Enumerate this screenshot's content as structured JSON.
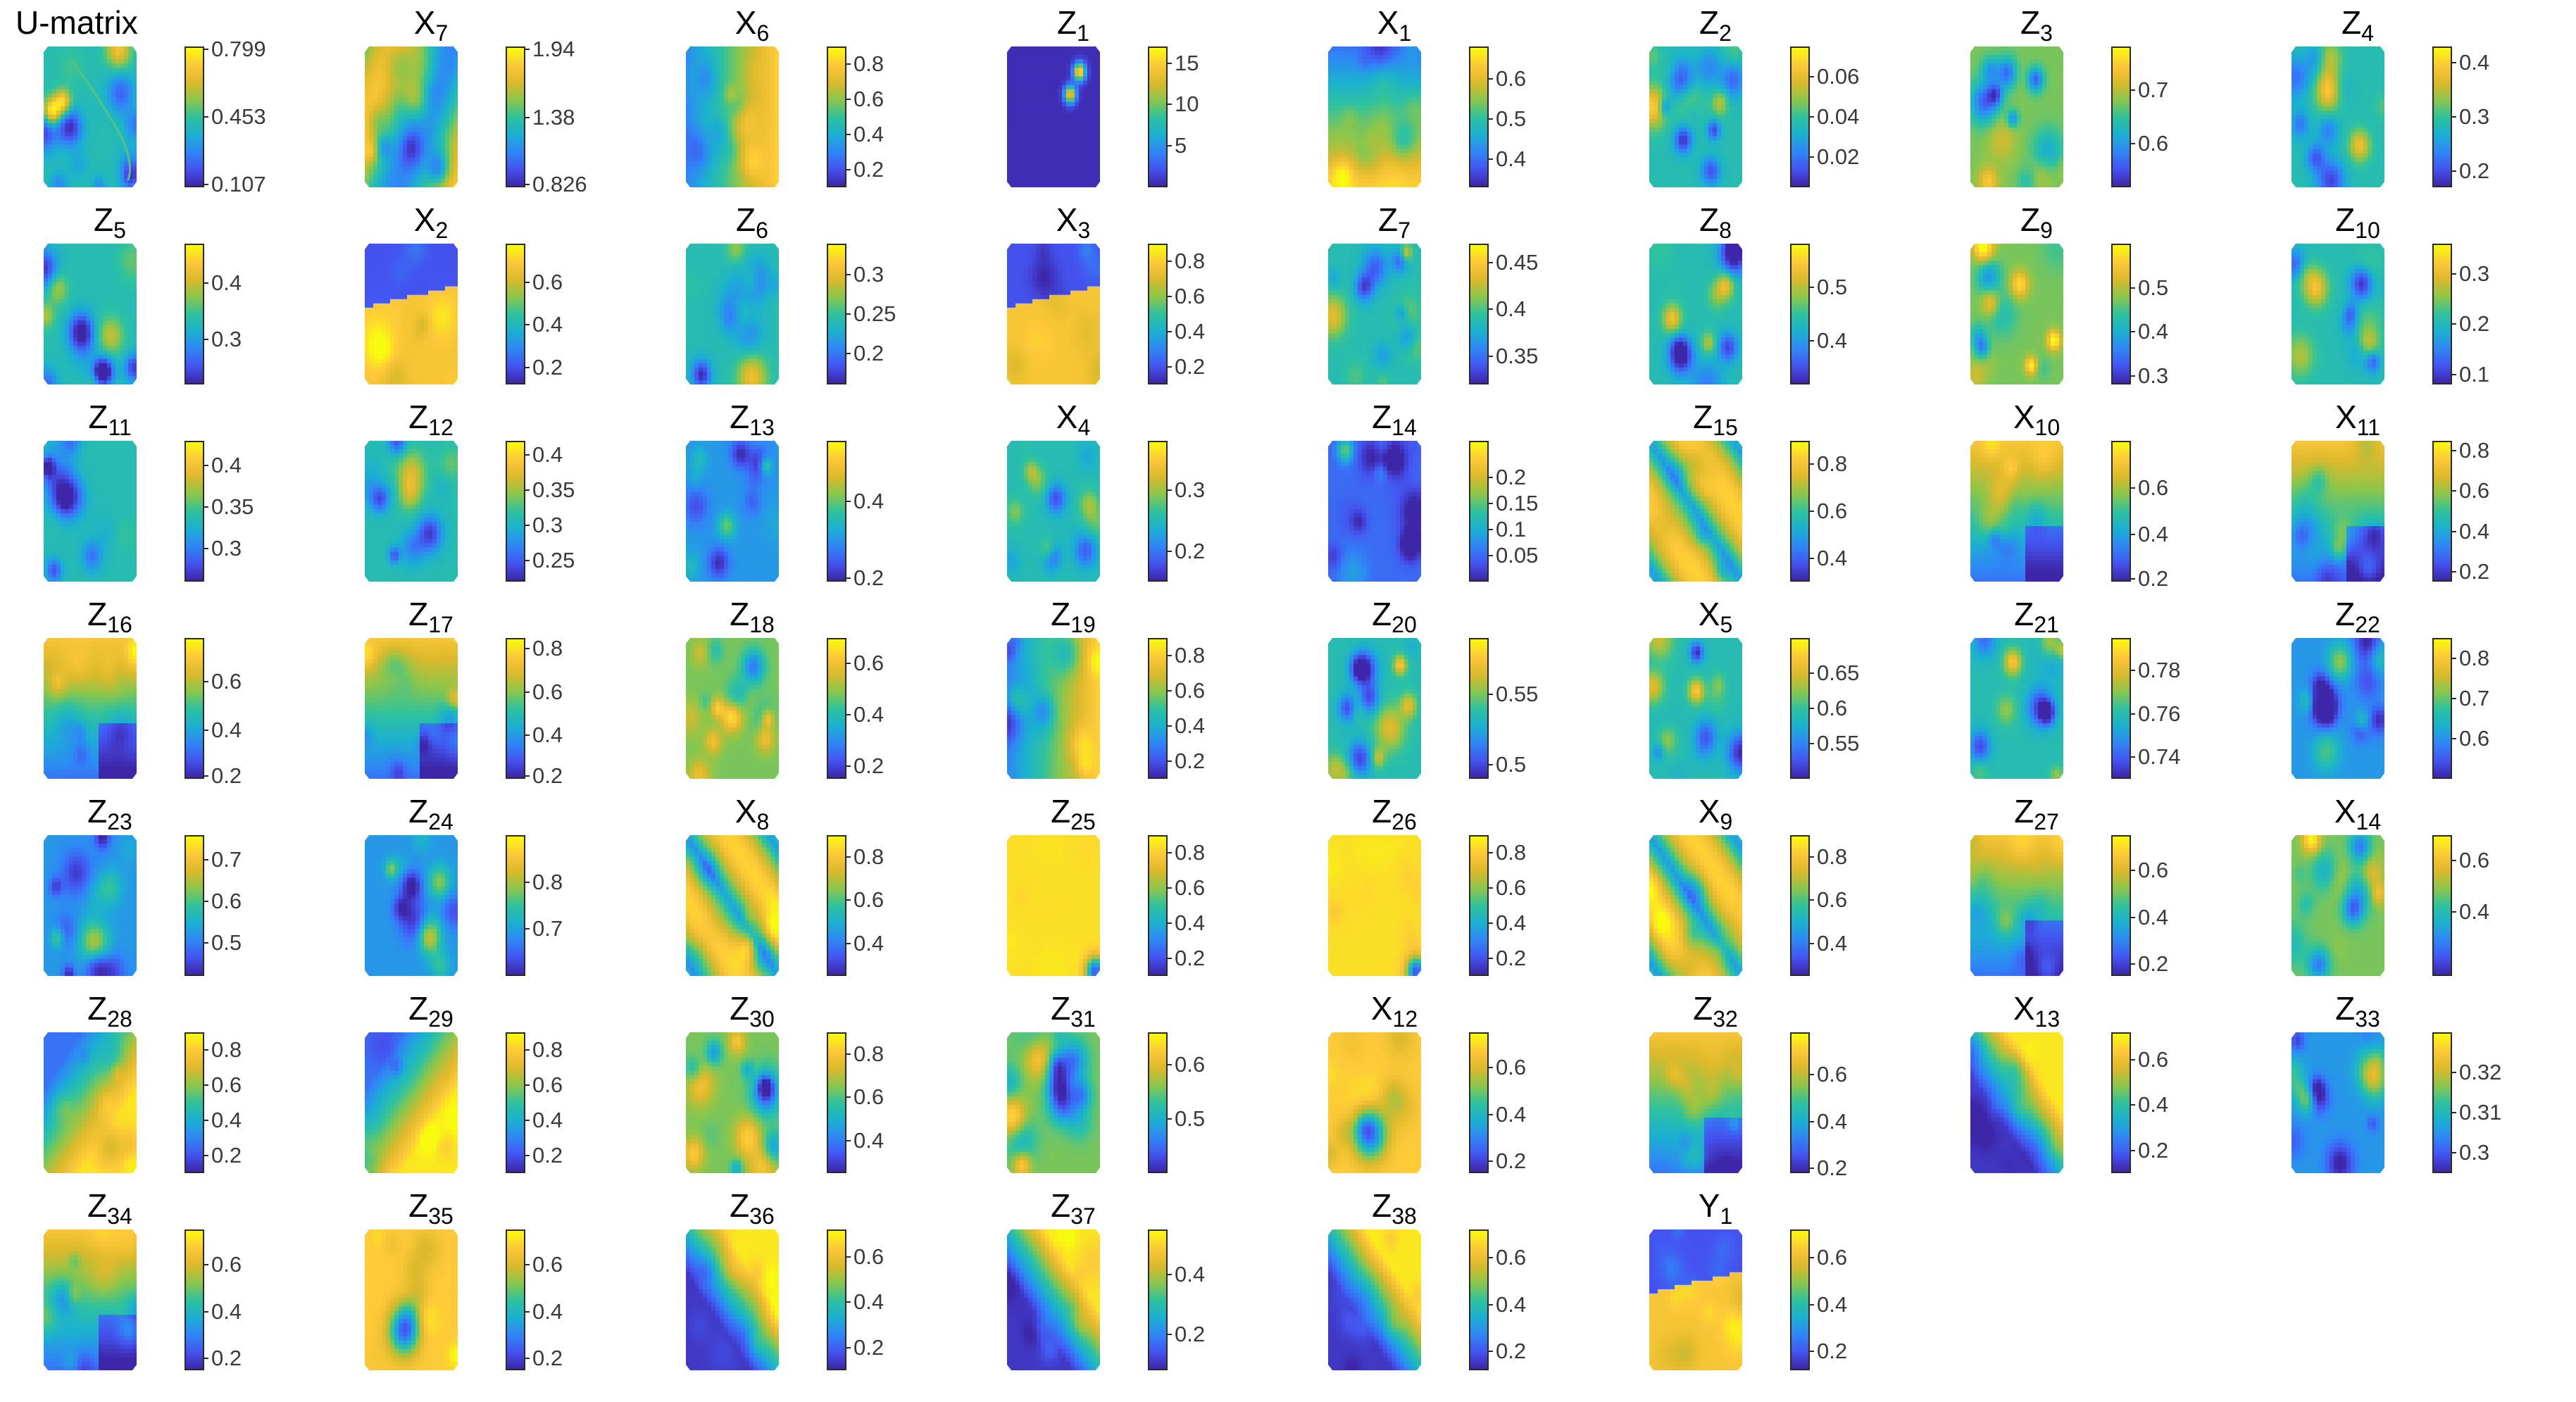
{
  "chart_data": {
    "type": "heatmap",
    "description_kind": "SOM component planes",
    "colormap": [
      "#3e26a8",
      "#4454f0",
      "#2f87f6",
      "#1bb0d0",
      "#2fc29e",
      "#8bc64b",
      "#dcb92c",
      "#fdc939",
      "#f9fb0e"
    ],
    "grid": "7 rows x 8 columns",
    "panels": [
      {
        "id": "U-matrix",
        "label": "U-matrix",
        "base": "U-matrix",
        "sub": "",
        "ticks": [
          "0.799",
          "0.453",
          "0.107"
        ],
        "tick_values": [
          0.799,
          0.453,
          0.107
        ],
        "range": [
          0.107,
          0.799
        ],
        "pattern": "speckle"
      },
      {
        "id": "X7",
        "label": "X7",
        "base": "X",
        "sub": "7",
        "ticks": [
          "1.94",
          "1.38",
          "0.826"
        ],
        "tick_values": [
          1.94,
          1.38,
          0.826
        ],
        "range": [
          0.826,
          1.94
        ],
        "pattern": "blob"
      },
      {
        "id": "X6",
        "label": "X6",
        "base": "X",
        "sub": "6",
        "ticks": [
          "0.8",
          "0.6",
          "0.4",
          "0.2"
        ],
        "tick_values": [
          0.8,
          0.6,
          0.4,
          0.2
        ],
        "range": [
          0.1,
          0.9
        ],
        "pattern": "gradient-right"
      },
      {
        "id": "Z1",
        "label": "Z1",
        "base": "Z",
        "sub": "1",
        "ticks": [
          "15",
          "10",
          "5"
        ],
        "tick_values": [
          15,
          10,
          5
        ],
        "range": [
          0,
          17
        ],
        "pattern": "dark-spots"
      },
      {
        "id": "X1",
        "label": "X1",
        "base": "X",
        "sub": "1",
        "ticks": [
          "0.6",
          "0.5",
          "0.4"
        ],
        "tick_values": [
          0.6,
          0.5,
          0.4
        ],
        "range": [
          0.33,
          0.68
        ],
        "pattern": "gradient-bottom"
      },
      {
        "id": "Z2",
        "label": "Z2",
        "base": "Z",
        "sub": "2",
        "ticks": [
          "0.06",
          "0.04",
          "0.02"
        ],
        "tick_values": [
          0.06,
          0.04,
          0.02
        ],
        "range": [
          0.005,
          0.075
        ],
        "pattern": "speckle"
      },
      {
        "id": "Z3",
        "label": "Z3",
        "base": "Z",
        "sub": "3",
        "ticks": [
          "0.7",
          "0.6"
        ],
        "tick_values": [
          0.7,
          0.6
        ],
        "range": [
          0.52,
          0.78
        ],
        "pattern": "speckle-warm"
      },
      {
        "id": "Z4",
        "label": "Z4",
        "base": "Z",
        "sub": "4",
        "ticks": [
          "0.4",
          "0.3",
          "0.2"
        ],
        "tick_values": [
          0.4,
          0.3,
          0.2
        ],
        "range": [
          0.17,
          0.43
        ],
        "pattern": "speckle"
      },
      {
        "id": "Z5",
        "label": "Z5",
        "base": "Z",
        "sub": "5",
        "ticks": [
          "0.4",
          "0.3"
        ],
        "tick_values": [
          0.4,
          0.3
        ],
        "range": [
          0.22,
          0.47
        ],
        "pattern": "speckle"
      },
      {
        "id": "X2",
        "label": "X2",
        "base": "X",
        "sub": "2",
        "ticks": [
          "0.6",
          "0.4",
          "0.2"
        ],
        "tick_values": [
          0.6,
          0.4,
          0.2
        ],
        "range": [
          0.12,
          0.78
        ],
        "pattern": "split-bottom"
      },
      {
        "id": "Z6",
        "label": "Z6",
        "base": "Z",
        "sub": "6",
        "ticks": [
          "0.3",
          "0.25",
          "0.2"
        ],
        "tick_values": [
          0.3,
          0.25,
          0.2
        ],
        "range": [
          0.16,
          0.34
        ],
        "pattern": "speckle"
      },
      {
        "id": "X3",
        "label": "X3",
        "base": "X",
        "sub": "3",
        "ticks": [
          "0.8",
          "0.6",
          "0.4",
          "0.2"
        ],
        "tick_values": [
          0.8,
          0.6,
          0.4,
          0.2
        ],
        "range": [
          0.1,
          0.9
        ],
        "pattern": "split-bottom"
      },
      {
        "id": "Z7",
        "label": "Z7",
        "base": "Z",
        "sub": "7",
        "ticks": [
          "0.45",
          "0.4",
          "0.35"
        ],
        "tick_values": [
          0.45,
          0.4,
          0.35
        ],
        "range": [
          0.32,
          0.47
        ],
        "pattern": "speckle"
      },
      {
        "id": "Z8",
        "label": "Z8",
        "base": "Z",
        "sub": "8",
        "ticks": [
          "0.5",
          "0.4"
        ],
        "tick_values": [
          0.5,
          0.4
        ],
        "range": [
          0.32,
          0.58
        ],
        "pattern": "speckle"
      },
      {
        "id": "Z9",
        "label": "Z9",
        "base": "Z",
        "sub": "9",
        "ticks": [
          "0.5",
          "0.4",
          "0.3"
        ],
        "tick_values": [
          0.5,
          0.4,
          0.3
        ],
        "range": [
          0.28,
          0.6
        ],
        "pattern": "speckle-warm"
      },
      {
        "id": "Z10",
        "label": "Z10",
        "base": "Z",
        "sub": "10",
        "ticks": [
          "0.3",
          "0.2",
          "0.1"
        ],
        "tick_values": [
          0.3,
          0.2,
          0.1
        ],
        "range": [
          0.08,
          0.36
        ],
        "pattern": "speckle"
      },
      {
        "id": "Z11",
        "label": "Z11",
        "base": "Z",
        "sub": "11",
        "ticks": [
          "0.4",
          "0.35",
          "0.3"
        ],
        "tick_values": [
          0.4,
          0.35,
          0.3
        ],
        "range": [
          0.26,
          0.43
        ],
        "pattern": "speckle"
      },
      {
        "id": "Z12",
        "label": "Z12",
        "base": "Z",
        "sub": "12",
        "ticks": [
          "0.4",
          "0.35",
          "0.3",
          "0.25"
        ],
        "tick_values": [
          0.4,
          0.35,
          0.3,
          0.25
        ],
        "range": [
          0.22,
          0.42
        ],
        "pattern": "speckle"
      },
      {
        "id": "Z13",
        "label": "Z13",
        "base": "Z",
        "sub": "13",
        "ticks": [
          "0.4",
          "0.2"
        ],
        "tick_values": [
          0.4,
          0.2
        ],
        "range": [
          0.19,
          0.56
        ],
        "pattern": "speckle-cool"
      },
      {
        "id": "X4",
        "label": "X4",
        "base": "X",
        "sub": "4",
        "ticks": [
          "0.3",
          "0.2"
        ],
        "tick_values": [
          0.3,
          0.2
        ],
        "range": [
          0.15,
          0.38
        ],
        "pattern": "speckle"
      },
      {
        "id": "Z14",
        "label": "Z14",
        "base": "Z",
        "sub": "14",
        "ticks": [
          "0.2",
          "0.15",
          "0.1",
          "0.05"
        ],
        "tick_values": [
          0.2,
          0.15,
          0.1,
          0.05
        ],
        "range": [
          0.0,
          0.27
        ],
        "pattern": "dark-speckle"
      },
      {
        "id": "Z15",
        "label": "Z15",
        "base": "Z",
        "sub": "15",
        "ticks": [
          "0.8",
          "0.6",
          "0.4"
        ],
        "tick_values": [
          0.8,
          0.6,
          0.4
        ],
        "range": [
          0.3,
          0.9
        ],
        "pattern": "diagonal"
      },
      {
        "id": "X10",
        "label": "X10",
        "base": "X",
        "sub": "10",
        "ticks": [
          "0.6",
          "0.4",
          "0.2"
        ],
        "tick_values": [
          0.6,
          0.4,
          0.2
        ],
        "range": [
          0.2,
          0.8
        ],
        "pattern": "gradient-top"
      },
      {
        "id": "X11",
        "label": "X11",
        "base": "X",
        "sub": "11",
        "ticks": [
          "0.8",
          "0.6",
          "0.4",
          "0.2"
        ],
        "tick_values": [
          0.8,
          0.6,
          0.4,
          0.2
        ],
        "range": [
          0.15,
          0.85
        ],
        "pattern": "gradient-top"
      },
      {
        "id": "Z16",
        "label": "Z16",
        "base": "Z",
        "sub": "16",
        "ticks": [
          "0.6",
          "0.4",
          "0.2"
        ],
        "tick_values": [
          0.6,
          0.4,
          0.2
        ],
        "range": [
          0.2,
          0.78
        ],
        "pattern": "gradient-top"
      },
      {
        "id": "Z17",
        "label": "Z17",
        "base": "Z",
        "sub": "17",
        "ticks": [
          "0.8",
          "0.6",
          "0.4",
          "0.2"
        ],
        "tick_values": [
          0.8,
          0.6,
          0.4,
          0.2
        ],
        "range": [
          0.2,
          0.85
        ],
        "pattern": "gradient-top"
      },
      {
        "id": "Z18",
        "label": "Z18",
        "base": "Z",
        "sub": "18",
        "ticks": [
          "0.6",
          "0.4",
          "0.2"
        ],
        "tick_values": [
          0.6,
          0.4,
          0.2
        ],
        "range": [
          0.15,
          0.7
        ],
        "pattern": "speckle-warm"
      },
      {
        "id": "Z19",
        "label": "Z19",
        "base": "Z",
        "sub": "19",
        "ticks": [
          "0.8",
          "0.6",
          "0.4",
          "0.2"
        ],
        "tick_values": [
          0.8,
          0.6,
          0.4,
          0.2
        ],
        "range": [
          0.1,
          0.9
        ],
        "pattern": "gradient-right"
      },
      {
        "id": "Z20",
        "label": "Z20",
        "base": "Z",
        "sub": "20",
        "ticks": [
          "0.55",
          "0.5"
        ],
        "tick_values": [
          0.55,
          0.5
        ],
        "range": [
          0.49,
          0.59
        ],
        "pattern": "speckle"
      },
      {
        "id": "X5",
        "label": "X5",
        "base": "X",
        "sub": "5",
        "ticks": [
          "0.65",
          "0.6",
          "0.55"
        ],
        "tick_values": [
          0.65,
          0.6,
          0.55
        ],
        "range": [
          0.5,
          0.7
        ],
        "pattern": "speckle"
      },
      {
        "id": "Z21",
        "label": "Z21",
        "base": "Z",
        "sub": "21",
        "ticks": [
          "0.78",
          "0.76",
          "0.74"
        ],
        "tick_values": [
          0.78,
          0.76,
          0.74
        ],
        "range": [
          0.73,
          0.795
        ],
        "pattern": "speckle"
      },
      {
        "id": "Z22",
        "label": "Z22",
        "base": "Z",
        "sub": "22",
        "ticks": [
          "0.8",
          "0.7",
          "0.6"
        ],
        "tick_values": [
          0.8,
          0.7,
          0.6
        ],
        "range": [
          0.5,
          0.85
        ],
        "pattern": "speckle-cool"
      },
      {
        "id": "Z23",
        "label": "Z23",
        "base": "Z",
        "sub": "23",
        "ticks": [
          "0.7",
          "0.6",
          "0.5"
        ],
        "tick_values": [
          0.7,
          0.6,
          0.5
        ],
        "range": [
          0.42,
          0.76
        ],
        "pattern": "speckle-cool"
      },
      {
        "id": "Z24",
        "label": "Z24",
        "base": "Z",
        "sub": "24",
        "ticks": [
          "0.8",
          "0.7"
        ],
        "tick_values": [
          0.8,
          0.7
        ],
        "range": [
          0.6,
          0.9
        ],
        "pattern": "speckle-cool"
      },
      {
        "id": "X8",
        "label": "X8",
        "base": "X",
        "sub": "8",
        "ticks": [
          "0.8",
          "0.6",
          "0.4"
        ],
        "tick_values": [
          0.8,
          0.6,
          0.4
        ],
        "range": [
          0.25,
          0.9
        ],
        "pattern": "diagonal"
      },
      {
        "id": "Z25",
        "label": "Z25",
        "base": "Z",
        "sub": "25",
        "ticks": [
          "0.8",
          "0.6",
          "0.4",
          "0.2"
        ],
        "tick_values": [
          0.8,
          0.6,
          0.4,
          0.2
        ],
        "range": [
          0.1,
          0.9
        ],
        "pattern": "yellow-corner"
      },
      {
        "id": "Z26",
        "label": "Z26",
        "base": "Z",
        "sub": "26",
        "ticks": [
          "0.8",
          "0.6",
          "0.4",
          "0.2"
        ],
        "tick_values": [
          0.8,
          0.6,
          0.4,
          0.2
        ],
        "range": [
          0.1,
          0.9
        ],
        "pattern": "yellow-corner"
      },
      {
        "id": "X9",
        "label": "X9",
        "base": "X",
        "sub": "9",
        "ticks": [
          "0.8",
          "0.6",
          "0.4"
        ],
        "tick_values": [
          0.8,
          0.6,
          0.4
        ],
        "range": [
          0.25,
          0.9
        ],
        "pattern": "diagonal"
      },
      {
        "id": "Z27",
        "label": "Z27",
        "base": "Z",
        "sub": "27",
        "ticks": [
          "0.6",
          "0.4",
          "0.2"
        ],
        "tick_values": [
          0.6,
          0.4,
          0.2
        ],
        "range": [
          0.15,
          0.75
        ],
        "pattern": "gradient-top"
      },
      {
        "id": "X14",
        "label": "X14",
        "base": "X",
        "sub": "14",
        "ticks": [
          "0.6",
          "0.4"
        ],
        "tick_values": [
          0.6,
          0.4
        ],
        "range": [
          0.15,
          0.7
        ],
        "pattern": "speckle-warm"
      },
      {
        "id": "Z28",
        "label": "Z28",
        "base": "Z",
        "sub": "28",
        "ticks": [
          "0.8",
          "0.6",
          "0.4",
          "0.2"
        ],
        "tick_values": [
          0.8,
          0.6,
          0.4,
          0.2
        ],
        "range": [
          0.1,
          0.9
        ],
        "pattern": "diagonal-warm"
      },
      {
        "id": "Z29",
        "label": "Z29",
        "base": "Z",
        "sub": "29",
        "ticks": [
          "0.8",
          "0.6",
          "0.4",
          "0.2"
        ],
        "tick_values": [
          0.8,
          0.6,
          0.4,
          0.2
        ],
        "range": [
          0.1,
          0.9
        ],
        "pattern": "diagonal-warm"
      },
      {
        "id": "Z30",
        "label": "Z30",
        "base": "Z",
        "sub": "30",
        "ticks": [
          "0.8",
          "0.6",
          "0.4"
        ],
        "tick_values": [
          0.8,
          0.6,
          0.4
        ],
        "range": [
          0.25,
          0.9
        ],
        "pattern": "speckle-warm"
      },
      {
        "id": "Z31",
        "label": "Z31",
        "base": "Z",
        "sub": "31",
        "ticks": [
          "0.6",
          "0.5"
        ],
        "tick_values": [
          0.6,
          0.5
        ],
        "range": [
          0.4,
          0.66
        ],
        "pattern": "speckle-warm"
      },
      {
        "id": "X12",
        "label": "X12",
        "base": "X",
        "sub": "12",
        "ticks": [
          "0.6",
          "0.4",
          "0.2"
        ],
        "tick_values": [
          0.6,
          0.4,
          0.2
        ],
        "range": [
          0.15,
          0.75
        ],
        "pattern": "warm-blob"
      },
      {
        "id": "Z32",
        "label": "Z32",
        "base": "Z",
        "sub": "32",
        "ticks": [
          "0.6",
          "0.4",
          "0.2"
        ],
        "tick_values": [
          0.6,
          0.4,
          0.2
        ],
        "range": [
          0.18,
          0.78
        ],
        "pattern": "gradient-top"
      },
      {
        "id": "X13",
        "label": "X13",
        "base": "X",
        "sub": "13",
        "ticks": [
          "0.6",
          "0.4",
          "0.2"
        ],
        "tick_values": [
          0.6,
          0.4,
          0.2
        ],
        "range": [
          0.1,
          0.72
        ],
        "pattern": "diagonal-cool"
      },
      {
        "id": "Z33",
        "label": "Z33",
        "base": "Z",
        "sub": "33",
        "ticks": [
          "0.32",
          "0.31",
          "0.3"
        ],
        "tick_values": [
          0.32,
          0.31,
          0.3
        ],
        "range": [
          0.295,
          0.33
        ],
        "pattern": "speckle-cool"
      },
      {
        "id": "Z34",
        "label": "Z34",
        "base": "Z",
        "sub": "34",
        "ticks": [
          "0.6",
          "0.4",
          "0.2"
        ],
        "tick_values": [
          0.6,
          0.4,
          0.2
        ],
        "range": [
          0.15,
          0.75
        ],
        "pattern": "gradient-top"
      },
      {
        "id": "Z35",
        "label": "Z35",
        "base": "Z",
        "sub": "35",
        "ticks": [
          "0.6",
          "0.4",
          "0.2"
        ],
        "tick_values": [
          0.6,
          0.4,
          0.2
        ],
        "range": [
          0.15,
          0.75
        ],
        "pattern": "warm-blob"
      },
      {
        "id": "Z36",
        "label": "Z36",
        "base": "Z",
        "sub": "36",
        "ticks": [
          "0.6",
          "0.4",
          "0.2"
        ],
        "tick_values": [
          0.6,
          0.4,
          0.2
        ],
        "range": [
          0.1,
          0.72
        ],
        "pattern": "diagonal-cool"
      },
      {
        "id": "Z37",
        "label": "Z37",
        "base": "Z",
        "sub": "37",
        "ticks": [
          "0.4",
          "0.2"
        ],
        "tick_values": [
          0.4,
          0.2
        ],
        "range": [
          0.08,
          0.55
        ],
        "pattern": "diagonal-cool"
      },
      {
        "id": "Z38",
        "label": "Z38",
        "base": "Z",
        "sub": "38",
        "ticks": [
          "0.6",
          "0.4",
          "0.2"
        ],
        "tick_values": [
          0.6,
          0.4,
          0.2
        ],
        "range": [
          0.12,
          0.72
        ],
        "pattern": "diagonal-cool"
      },
      {
        "id": "Y1",
        "label": "Y1",
        "base": "Y",
        "sub": "1",
        "ticks": [
          "0.6",
          "0.4",
          "0.2"
        ],
        "tick_values": [
          0.6,
          0.4,
          0.2
        ],
        "range": [
          0.12,
          0.72
        ],
        "pattern": "split-bottom"
      }
    ]
  }
}
